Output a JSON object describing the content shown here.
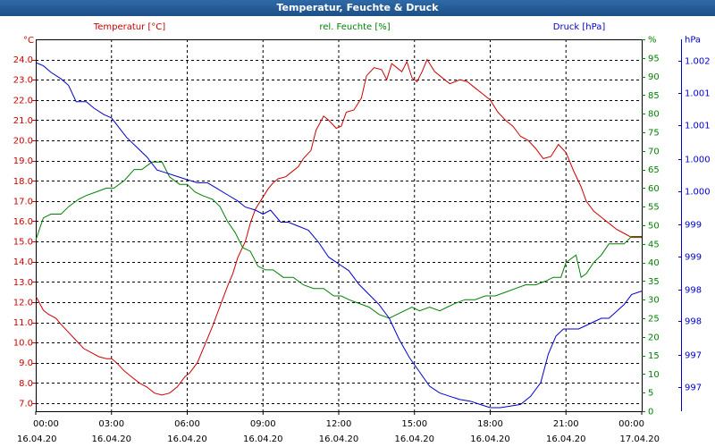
{
  "window": {
    "title": "Temperatur, Feuchte & Druck"
  },
  "chart_data": {
    "type": "line",
    "title": "Temperatur, Feuchte & Druck",
    "x_ticks": [
      {
        "time": "00:00",
        "date": "16.04.20"
      },
      {
        "time": "03:00",
        "date": "16.04.20"
      },
      {
        "time": "06:00",
        "date": "16.04.20"
      },
      {
        "time": "09:00",
        "date": "16.04.20"
      },
      {
        "time": "12:00",
        "date": "16.04.20"
      },
      {
        "time": "15:00",
        "date": "16.04.20"
      },
      {
        "time": "18:00",
        "date": "16.04.20"
      },
      {
        "time": "21:00",
        "date": "16.04.20"
      },
      {
        "time": "00:00",
        "date": "17.04.20"
      }
    ],
    "x_range_hours": [
      0,
      24
    ],
    "grid": true,
    "axes": {
      "temperature": {
        "label": "Temperatur [°C]",
        "unit": "°C",
        "color": "#cc0000",
        "range": [
          6.6,
          25.0
        ],
        "ticks": [
          "7.0",
          "8.0",
          "9.0",
          "10.0",
          "11.0",
          "12.0",
          "13.0",
          "14.0",
          "15.0",
          "16.0",
          "17.0",
          "18.0",
          "19.0",
          "20.0",
          "21.0",
          "22.0",
          "23.0",
          "24.0"
        ]
      },
      "humidity": {
        "label": "rel. Feuchte [%]",
        "unit": "%",
        "color": "#008000",
        "range": [
          0,
          100
        ],
        "ticks": [
          "0",
          "5",
          "10",
          "15",
          "20",
          "25",
          "30",
          "35",
          "40",
          "45",
          "50",
          "55",
          "60",
          "65",
          "70",
          "75",
          "80",
          "85",
          "90",
          "95",
          "%"
        ]
      },
      "pressure": {
        "label": "Druck [hPa]",
        "unit": "hPa",
        "color": "#0000cc",
        "ticks": [
          "997",
          "997",
          "998",
          "998",
          "999",
          "999",
          "1.000",
          "1.000",
          "1.001",
          "1.001",
          "1.002",
          "hPa"
        ]
      }
    },
    "series": [
      {
        "name": "Temperatur [°C]",
        "axis": "temperature",
        "color": "#cc0000",
        "x": [
          0,
          0.3,
          0.5,
          0.8,
          1.0,
          1.3,
          1.6,
          1.9,
          2.2,
          2.5,
          2.8,
          3.0,
          3.2,
          3.5,
          3.8,
          4.1,
          4.4,
          4.7,
          5.0,
          5.3,
          5.6,
          5.9,
          6.1,
          6.4,
          6.7,
          7.0,
          7.3,
          7.6,
          7.8,
          8.0,
          8.3,
          8.5,
          8.7,
          9.0,
          9.2,
          9.4,
          9.6,
          9.9,
          10.1,
          10.4,
          10.6,
          10.9,
          11.1,
          11.4,
          11.6,
          11.9,
          12.1,
          12.3,
          12.6,
          12.9,
          13.1,
          13.4,
          13.7,
          13.9,
          14.1,
          14.3,
          14.5,
          14.7,
          14.9,
          15.1,
          15.3,
          15.5,
          15.8,
          16.0,
          16.2,
          16.4,
          16.6,
          16.8,
          17.1,
          17.4,
          17.7,
          18.0,
          18.3,
          18.6,
          18.9,
          19.2,
          19.5,
          19.8,
          20.1,
          20.4,
          20.7,
          21.0,
          21.3,
          21.6,
          21.8,
          22.1,
          22.4,
          22.7,
          23.0,
          23.3,
          23.6,
          24.0
        ],
        "values": [
          12.3,
          11.6,
          11.4,
          11.2,
          10.9,
          10.5,
          10.1,
          9.7,
          9.5,
          9.3,
          9.2,
          9.2,
          9.0,
          8.6,
          8.3,
          8.0,
          7.8,
          7.5,
          7.4,
          7.5,
          7.8,
          8.3,
          8.5,
          9.0,
          9.9,
          10.8,
          11.8,
          12.8,
          13.4,
          14.2,
          15.0,
          15.9,
          16.6,
          17.2,
          17.6,
          17.9,
          18.1,
          18.2,
          18.4,
          18.7,
          19.1,
          19.5,
          20.5,
          21.2,
          21.0,
          20.6,
          20.7,
          21.4,
          21.5,
          22.1,
          23.2,
          23.6,
          23.5,
          23.0,
          23.8,
          23.6,
          23.4,
          23.9,
          23.1,
          22.9,
          23.4,
          24.0,
          23.4,
          23.2,
          23.0,
          22.8,
          22.9,
          23.0,
          22.9,
          22.6,
          22.3,
          22.0,
          21.4,
          21.0,
          20.7,
          20.2,
          20.0,
          19.6,
          19.1,
          19.2,
          19.8,
          19.4,
          18.5,
          17.7,
          17.0,
          16.5,
          16.2,
          15.9,
          15.6,
          15.4,
          15.2,
          15.2
        ]
      },
      {
        "name": "rel. Feuchte [%]",
        "axis": "humidity",
        "color": "#008000",
        "x": [
          0,
          0.3,
          0.6,
          1.0,
          1.3,
          1.7,
          2.0,
          2.4,
          2.8,
          3.1,
          3.5,
          3.9,
          4.2,
          4.6,
          5.0,
          5.3,
          5.7,
          6.0,
          6.3,
          6.6,
          7.0,
          7.3,
          7.6,
          7.9,
          8.2,
          8.5,
          8.8,
          9.1,
          9.4,
          9.8,
          10.2,
          10.6,
          11.0,
          11.4,
          11.8,
          12.1,
          12.4,
          12.8,
          13.2,
          13.6,
          14.0,
          14.3,
          14.6,
          14.9,
          15.2,
          15.6,
          16.0,
          16.3,
          16.6,
          17.0,
          17.4,
          17.8,
          18.2,
          18.6,
          19.0,
          19.4,
          19.8,
          20.2,
          20.5,
          20.8,
          21.0,
          21.2,
          21.4,
          21.6,
          21.8,
          22.1,
          22.4,
          22.7,
          23.0,
          23.3,
          23.6,
          24.0
        ],
        "values": [
          46,
          52,
          53,
          53,
          55,
          57,
          58,
          59,
          60,
          60,
          62,
          65,
          65,
          67,
          67,
          63,
          61,
          61,
          59,
          58,
          57,
          55,
          51,
          48,
          44,
          43,
          39,
          38,
          38,
          36,
          36,
          34,
          33,
          33,
          31,
          31,
          30,
          29,
          28,
          26,
          25,
          26,
          27,
          28,
          27,
          28,
          27,
          28,
          29,
          30,
          30,
          31,
          31,
          32,
          33,
          34,
          34,
          35,
          36,
          36,
          40,
          41,
          42,
          36,
          37,
          40,
          42,
          45,
          45,
          45,
          47,
          47
        ]
      },
      {
        "name": "Druck [hPa]",
        "axis": "pressure",
        "color": "#0000cc",
        "x": [
          0,
          0.3,
          0.6,
          1.0,
          1.3,
          1.6,
          2.0,
          2.3,
          2.7,
          3.0,
          3.3,
          3.6,
          4.0,
          4.4,
          4.8,
          5.2,
          5.6,
          6.0,
          6.4,
          6.8,
          7.2,
          7.6,
          8.0,
          8.3,
          8.7,
          9.0,
          9.3,
          9.7,
          10.0,
          10.4,
          10.8,
          11.2,
          11.6,
          12.0,
          12.4,
          12.8,
          13.2,
          13.6,
          14.0,
          14.4,
          14.8,
          15.2,
          15.6,
          16.0,
          16.4,
          16.8,
          17.2,
          17.6,
          18.0,
          18.4,
          18.8,
          19.2,
          19.6,
          20.0,
          20.3,
          20.6,
          20.9,
          21.2,
          21.5,
          21.8,
          22.1,
          22.4,
          22.7,
          23.0,
          23.3,
          23.6,
          24.0
        ],
        "values": [
          1002.3,
          1002.25,
          1002.15,
          1002.05,
          1001.95,
          1001.7,
          1001.7,
          1001.6,
          1001.5,
          1001.45,
          1001.3,
          1001.15,
          1001.0,
          1000.85,
          1000.65,
          1000.6,
          1000.55,
          1000.5,
          1000.45,
          1000.45,
          1000.35,
          1000.25,
          1000.15,
          1000.05,
          1000.0,
          999.95,
          1000.0,
          999.85,
          999.85,
          999.8,
          999.75,
          999.6,
          999.4,
          999.3,
          999.2,
          999.0,
          998.85,
          998.7,
          998.5,
          998.2,
          997.95,
          997.75,
          997.55,
          997.4,
          997.3,
          997.2,
          997.15,
          997.05,
          996.95,
          996.95,
          997.0,
          997.05,
          997.3,
          997.6,
          998.0,
          998.25,
          998.35,
          998.35,
          998.35,
          998.4,
          998.45,
          998.5,
          998.5,
          998.6,
          998.7,
          998.85,
          998.9
        ]
      }
    ]
  }
}
